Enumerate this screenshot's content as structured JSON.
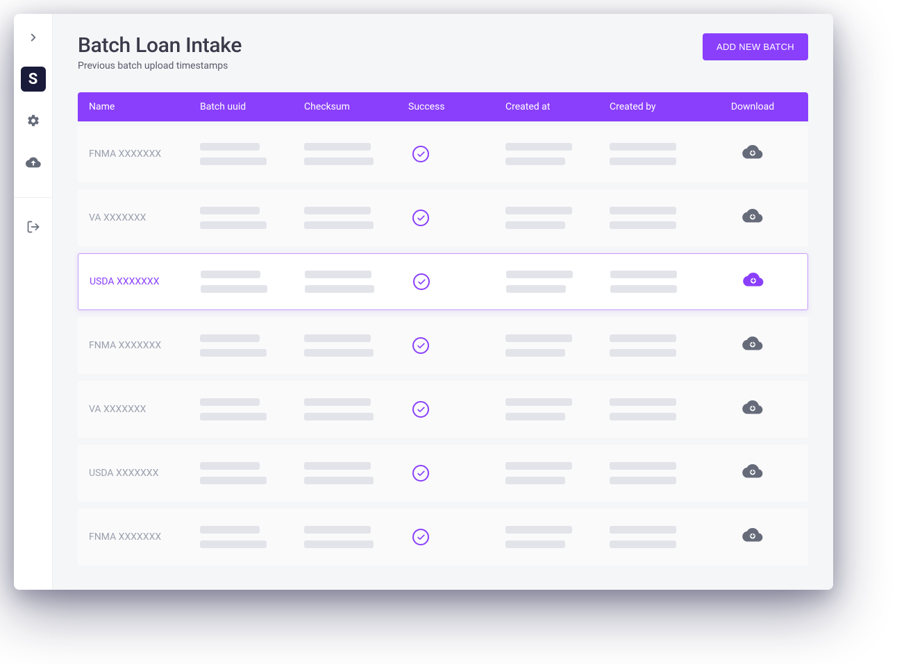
{
  "colors": {
    "accent": "#8a3ffc",
    "page_bg": "#f5f6f8",
    "row_bg": "#fafafb",
    "skeleton": "#e2e4ea",
    "muted_text": "#9aa0ac",
    "icon_muted": "#666b7a",
    "selected_border": "#c49af8",
    "sidebar_logo_bg": "#1a1a3a"
  },
  "sidebar": {
    "logo_letter": "S"
  },
  "header": {
    "title": "Batch Loan Intake",
    "subtitle": "Previous batch upload timestamps",
    "add_button": "ADD NEW BATCH"
  },
  "table": {
    "columns": [
      "Name",
      "Batch uuid",
      "Checksum",
      "Success",
      "Created at",
      "Created by",
      "Download"
    ],
    "rows": [
      {
        "name": "FNMA XXXXXXX",
        "selected": false
      },
      {
        "name": "VA XXXXXXX",
        "selected": false
      },
      {
        "name": "USDA XXXXXXX",
        "selected": true
      },
      {
        "name": "FNMA XXXXXXX",
        "selected": false
      },
      {
        "name": "VA XXXXXXX",
        "selected": false
      },
      {
        "name": "USDA XXXXXXX",
        "selected": false
      },
      {
        "name": "FNMA XXXXXXX",
        "selected": false
      }
    ]
  }
}
